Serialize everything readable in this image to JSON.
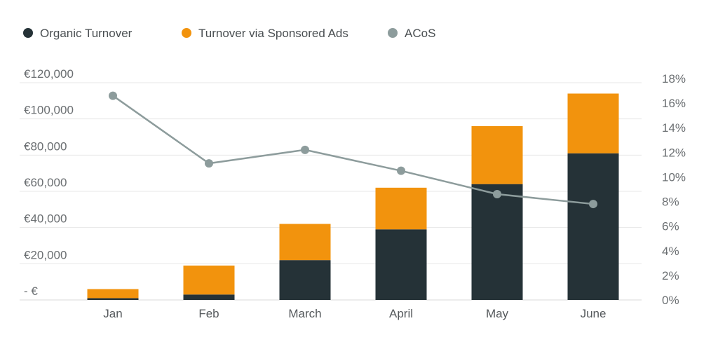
{
  "colors": {
    "organic": "#253237",
    "sponsored": "#f2930d",
    "acos": "#8d9c9c",
    "grid": "#e7e7e7",
    "baseline": "#d9d9d9"
  },
  "legend": [
    {
      "label": "Organic Turnover",
      "color": "#253237"
    },
    {
      "label": "Turnover via Sponsored Ads",
      "color": "#f2930d"
    },
    {
      "label": "ACoS",
      "color": "#8d9c9c"
    }
  ],
  "chart_data": {
    "type": "bar",
    "stacked": true,
    "categories": [
      "Jan",
      "Feb",
      "March",
      "April",
      "May",
      "June"
    ],
    "series": [
      {
        "name": "Organic Turnover",
        "axis": "left",
        "values": [
          1000,
          3000,
          22000,
          39000,
          64000,
          81000
        ]
      },
      {
        "name": "Turnover via Sponsored Ads",
        "axis": "left",
        "values": [
          5000,
          16000,
          20000,
          23000,
          32000,
          33000
        ]
      },
      {
        "name": "ACoS",
        "axis": "right",
        "type": "line",
        "values": [
          16.6,
          11.1,
          12.2,
          10.5,
          8.6,
          7.8
        ]
      }
    ],
    "ylim_left": [
      0,
      120000
    ],
    "ylim_right": [
      0,
      18
    ],
    "yticks_left": [
      "- €",
      "€20,000",
      "€40,000",
      "€60,000",
      "€80,000",
      "€100,000",
      "€120,000"
    ],
    "yticks_right": [
      "0%",
      "2%",
      "4%",
      "6%",
      "8%",
      "10%",
      "12%",
      "14%",
      "16%",
      "18%"
    ],
    "grid": true,
    "legend_position": "top-left"
  }
}
